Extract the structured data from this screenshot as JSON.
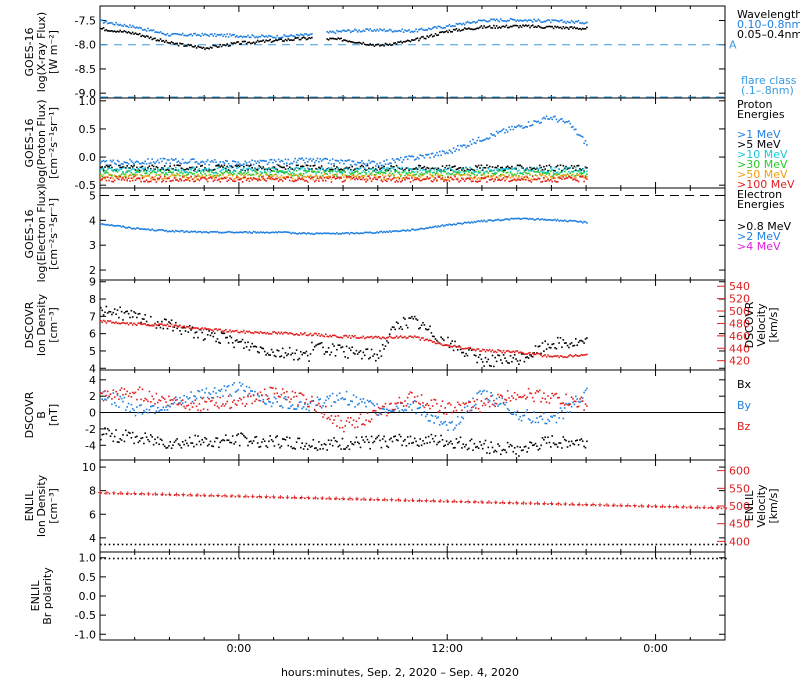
{
  "xlabel": "hours:minutes, Sep.  2, 2020 – Sep.  4, 2020",
  "x_tick_labels": [
    "0:00",
    "12:00",
    "0:00"
  ],
  "colors": {
    "black": "#000000",
    "blue": "#1f7fe0",
    "cyan": "#18c8d8",
    "green": "#28c828",
    "orange": "#f0a010",
    "red": "#e02020",
    "magenta": "#e020e0",
    "flare": "#3a9be0"
  },
  "chart_data": [
    {
      "type": "scatter",
      "id": "xray",
      "ylabel": [
        "GOES-16",
        "log(X-ray Flux)",
        "[W m⁻²]"
      ],
      "ylim": [
        -9.1,
        -7.2
      ],
      "y_ticks": [
        "-7.5",
        "-8.0",
        "-8.5",
        "-9.0"
      ],
      "legend": [
        "Wavelength",
        "0.10–0.8nm",
        "0.05–0.4nm"
      ],
      "flare_class": {
        "letter": "A",
        "value": -8.0,
        "label": [
          "flare class",
          "(.1–.8nm)"
        ]
      },
      "series": [
        {
          "name": "0.10–0.8nm",
          "color": "blue",
          "x": [
            -8,
            -6,
            -4,
            -2,
            0,
            2,
            4,
            6,
            8,
            10,
            12,
            14,
            16,
            18,
            20
          ],
          "y": [
            -7.5,
            -7.62,
            -7.78,
            -7.78,
            -7.8,
            -7.82,
            -7.78,
            -7.7,
            -7.68,
            -7.7,
            -7.6,
            -7.48,
            -7.47,
            -7.5,
            -7.52
          ],
          "gaps": [
            [
              4.2,
              5.0
            ]
          ]
        },
        {
          "name": "0.05–0.4nm",
          "color": "black",
          "x": [
            -8,
            -6,
            -4,
            -2,
            0,
            2,
            4,
            6,
            8,
            10,
            12,
            14,
            16,
            18,
            20
          ],
          "y": [
            -7.65,
            -7.75,
            -7.95,
            -8.05,
            -7.95,
            -7.9,
            -7.85,
            -7.88,
            -8.0,
            -7.9,
            -7.7,
            -7.62,
            -7.6,
            -7.62,
            -7.65
          ],
          "gaps": [
            [
              4.2,
              5.0
            ]
          ]
        }
      ]
    },
    {
      "type": "scatter",
      "id": "proton",
      "ylabel": [
        "GOES-16",
        "log(Proton Flux)",
        "[cm⁻²s⁻¹sr⁻¹]"
      ],
      "ylim": [
        -0.55,
        1.05
      ],
      "y_ticks": [
        "1.0",
        "0.5",
        "0.0",
        "-0.5"
      ],
      "legend": [
        "Proton",
        "Energies",
        ">1 MeV",
        ">5 MeV",
        ">10 MeV",
        ">30 MeV",
        ">50 MeV",
        ">100 MeV"
      ],
      "series": [
        {
          "name": ">1 MeV",
          "color": "blue",
          "x": [
            -8,
            -4,
            0,
            4,
            8,
            10,
            12,
            14,
            16,
            18,
            19,
            20
          ],
          "y": [
            -0.1,
            -0.05,
            -0.1,
            -0.05,
            -0.1,
            0.0,
            0.1,
            0.35,
            0.55,
            0.72,
            0.6,
            0.25
          ]
        },
        {
          "name": ">5 MeV",
          "color": "black",
          "x": [
            -8,
            20
          ],
          "y": [
            -0.18,
            -0.18
          ]
        },
        {
          "name": ">10 MeV",
          "color": "cyan",
          "x": [
            -8,
            20
          ],
          "y": [
            -0.22,
            -0.22
          ]
        },
        {
          "name": ">30 MeV",
          "color": "green",
          "x": [
            -8,
            20
          ],
          "y": [
            -0.28,
            -0.28
          ]
        },
        {
          "name": ">50 MeV",
          "color": "orange",
          "x": [
            -8,
            20
          ],
          "y": [
            -0.34,
            -0.34
          ]
        },
        {
          "name": ">100 MeV",
          "color": "red",
          "x": [
            -8,
            20
          ],
          "y": [
            -0.38,
            -0.38
          ]
        }
      ]
    },
    {
      "type": "scatter",
      "id": "electron",
      "ylabel": [
        "GOES-16",
        "log(Electron Flux)",
        "[cm⁻²s⁻¹sr⁻¹]"
      ],
      "ylim": [
        1.6,
        5.3
      ],
      "y_ticks": [
        "5",
        "4",
        "3",
        "2"
      ],
      "threshold": 5.0,
      "legend": [
        "Electron",
        "Energies",
        ">0.8 MeV",
        ">2 MeV",
        ">4 MeV"
      ],
      "series": [
        {
          "name": ">2 MeV",
          "color": "blue",
          "x": [
            -8,
            -6,
            -4,
            -2,
            0,
            2,
            4,
            6,
            8,
            10,
            12,
            14,
            16,
            18,
            20
          ],
          "y": [
            3.9,
            3.7,
            3.6,
            3.55,
            3.55,
            3.55,
            3.5,
            3.5,
            3.55,
            3.65,
            3.85,
            4.0,
            4.1,
            4.05,
            3.95
          ]
        }
      ]
    },
    {
      "type": "scatter",
      "id": "dscovr-density",
      "ylabel": [
        "DSCOVR",
        "Ion Density",
        "[cm⁻³]"
      ],
      "ylim": [
        3.9,
        9.1
      ],
      "y_ticks": [
        "9",
        "8",
        "7",
        "6",
        "5",
        "4"
      ],
      "y2label": [
        "DSCOVR",
        "Velocity",
        "[km/s]"
      ],
      "y2lim": [
        405,
        550
      ],
      "y2_ticks": [
        "540",
        "520",
        "500",
        "480",
        "460",
        "440",
        "420"
      ],
      "series": [
        {
          "name": "density",
          "color": "black",
          "axis": "left",
          "x": [
            -8,
            -6,
            -4,
            -2,
            0,
            2,
            4,
            4.2,
            6,
            8,
            9,
            10,
            12,
            14,
            16,
            18,
            20
          ],
          "y": [
            7.5,
            7.0,
            6.5,
            6.0,
            5.5,
            5.0,
            4.8,
            5.3,
            5.0,
            4.8,
            6.5,
            6.8,
            5.5,
            4.5,
            4.5,
            5.5,
            5.5
          ]
        },
        {
          "name": "velocity",
          "color": "red",
          "axis": "right",
          "x": [
            -8,
            -6,
            -4,
            -2,
            0,
            2,
            4,
            6,
            8,
            10,
            12,
            14,
            16,
            18,
            20
          ],
          "y": [
            485,
            480,
            478,
            472,
            468,
            466,
            464,
            460,
            458,
            460,
            445,
            438,
            435,
            428,
            430
          ]
        }
      ]
    },
    {
      "type": "scatter",
      "id": "dscovr-b",
      "ylabel": [
        "DSCOVR",
        "B",
        "[nT]"
      ],
      "ylim": [
        -5.8,
        5.2
      ],
      "y_ticks": [
        "4",
        "2",
        "0",
        "-2",
        "-4"
      ],
      "zero_line": true,
      "legend": [
        "Bx",
        "By",
        "Bz"
      ],
      "series": [
        {
          "name": "Bx",
          "color": "black",
          "x": [
            -8,
            -6,
            -4,
            -2,
            0,
            2,
            4,
            6,
            8,
            10,
            12,
            14,
            16,
            18,
            20
          ],
          "y": [
            -2.5,
            -3.0,
            -3.5,
            -3.5,
            -3.2,
            -3.5,
            -3.8,
            -3.8,
            -3.5,
            -3.2,
            -3.5,
            -4.0,
            -4.5,
            -3.5,
            -3.5
          ]
        },
        {
          "name": "By",
          "color": "blue",
          "x": [
            -8,
            -6,
            -4,
            -2,
            0,
            2,
            4,
            6,
            8,
            10,
            12,
            14,
            16,
            18,
            20
          ],
          "y": [
            2.5,
            0.5,
            1.0,
            2.5,
            3.0,
            1.5,
            1.0,
            2.0,
            0.5,
            1.0,
            -2.0,
            2.5,
            0.0,
            -1.0,
            2.5
          ]
        },
        {
          "name": "Bz",
          "color": "red",
          "x": [
            -8,
            -6,
            -4,
            -2,
            0,
            2,
            4,
            6,
            8,
            10,
            12,
            14,
            16,
            18,
            20
          ],
          "y": [
            2.0,
            2.5,
            1.5,
            1.0,
            1.5,
            2.5,
            1.5,
            -1.5,
            0.0,
            2.0,
            0.5,
            1.0,
            2.5,
            2.0,
            1.0
          ]
        }
      ]
    },
    {
      "type": "scatter",
      "id": "enlil-density",
      "ylabel": [
        "ENLIL",
        "Ion Density",
        "[cm⁻³]"
      ],
      "ylim": [
        2.8,
        10.6
      ],
      "y_ticks": [
        "10",
        "8",
        "6",
        "4"
      ],
      "y2label": [
        "ENLIL",
        "Velocity",
        "[km/s]"
      ],
      "y2lim": [
        370,
        630
      ],
      "y2_ticks": [
        "600",
        "550",
        "500",
        "450",
        "400"
      ],
      "series": [
        {
          "name": "velocity",
          "color": "red",
          "axis": "right",
          "x": [
            -8,
            28
          ],
          "y": [
            538,
            495
          ]
        },
        {
          "name": "density",
          "color": "black",
          "axis": "left",
          "x": [
            -8,
            28
          ],
          "y": [
            3.5,
            3.5
          ]
        }
      ]
    },
    {
      "type": "scatter",
      "id": "enlil-polarity",
      "ylabel": [
        "ENLIL",
        "Br polarity"
      ],
      "ylim": [
        -1.15,
        1.15
      ],
      "y_ticks": [
        "1.0",
        "0.5",
        "0.0",
        "-0.5",
        "-1.0"
      ],
      "series": [
        {
          "name": "polarity",
          "color": "black",
          "x": [
            -8,
            28
          ],
          "y": [
            1.0,
            1.0
          ]
        }
      ]
    }
  ]
}
